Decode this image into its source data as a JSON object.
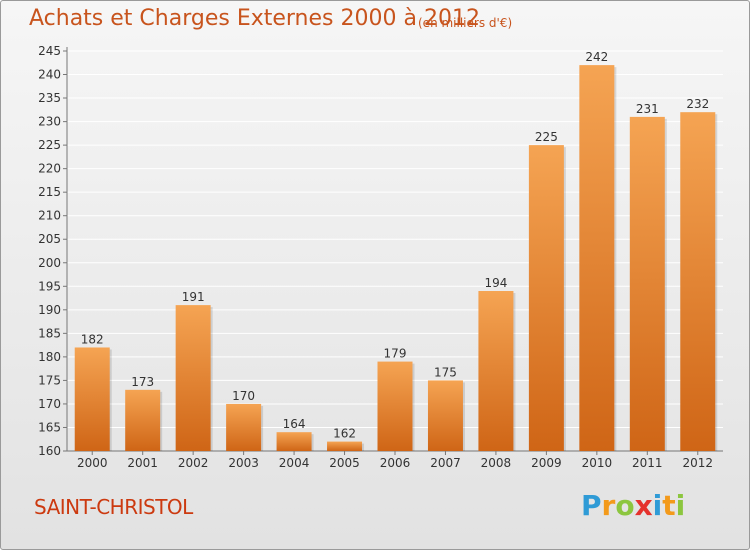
{
  "title": "Achats et Charges Externes 2000 à 2012",
  "subtitle": "(en milliers d'€)",
  "commune": "SAINT-CHRISTOL",
  "logo": {
    "letters": [
      "P",
      "r",
      "o",
      "x",
      "i",
      "t",
      "i"
    ],
    "colors": [
      "#2f9bd6",
      "#f39a1b",
      "#8cc63f",
      "#e5322d",
      "#2f9bd6",
      "#f39a1b",
      "#8cc63f"
    ]
  },
  "colors": {
    "bar_top": "#f5a453",
    "bar_bottom": "#cf6516",
    "text": "#c8541d",
    "grid": "#ffffff"
  },
  "chart_data": {
    "type": "bar",
    "categories": [
      "2000",
      "2001",
      "2002",
      "2003",
      "2004",
      "2005",
      "2006",
      "2007",
      "2008",
      "2009",
      "2010",
      "2011",
      "2012"
    ],
    "values": [
      182,
      173,
      191,
      170,
      164,
      162,
      179,
      175,
      194,
      225,
      242,
      231,
      232
    ],
    "ylim": [
      160,
      245
    ],
    "yticks": [
      160,
      165,
      170,
      175,
      180,
      185,
      190,
      195,
      200,
      205,
      210,
      215,
      220,
      225,
      230,
      235,
      240,
      245
    ],
    "grid": true,
    "data_labels": true
  }
}
